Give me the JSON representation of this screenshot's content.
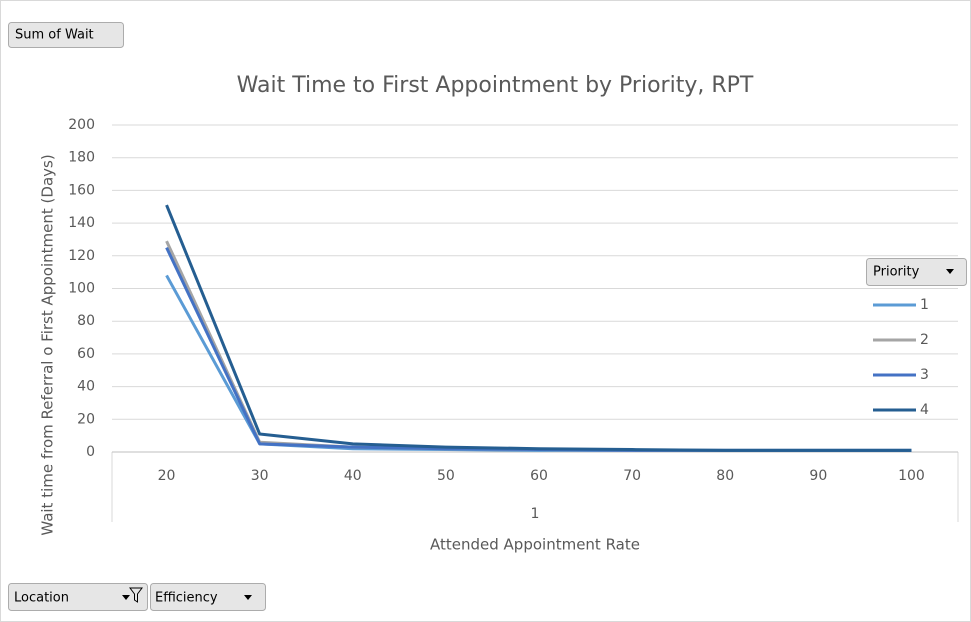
{
  "field_buttons": {
    "values": "Sum of Wait",
    "axis": [
      "Location",
      "Efficiency"
    ]
  },
  "chart_data": {
    "type": "line",
    "title": "Wait Time to First Appointment by Priority, RPT",
    "x_label": "Attended Appointment Rate",
    "y_label": "Wait time from Referral o First Appointment (Days)",
    "legend_title": "Priority",
    "category_group": "1",
    "categories": [
      "20",
      "30",
      "40",
      "50",
      "60",
      "70",
      "80",
      "90",
      "100"
    ],
    "series": [
      {
        "name": "1",
        "color": "#5b9bd5",
        "values": [
          108,
          5,
          2,
          1.5,
          1,
          1,
          1,
          1,
          1
        ]
      },
      {
        "name": "2",
        "color": "#a5a5a5",
        "values": [
          129,
          6,
          3,
          2,
          1.5,
          1,
          1,
          1,
          1
        ]
      },
      {
        "name": "3",
        "color": "#4472c4",
        "values": [
          125,
          5,
          3,
          2,
          1.5,
          1,
          1,
          1,
          1
        ]
      },
      {
        "name": "4",
        "color": "#255e91",
        "values": [
          151,
          11,
          5,
          3,
          2,
          1.5,
          1,
          1,
          1
        ]
      }
    ],
    "ylim": [
      0,
      200
    ],
    "yticks": [
      0,
      20,
      40,
      60,
      80,
      100,
      120,
      140,
      160,
      180,
      200
    ],
    "grid": true,
    "legend": "right"
  }
}
